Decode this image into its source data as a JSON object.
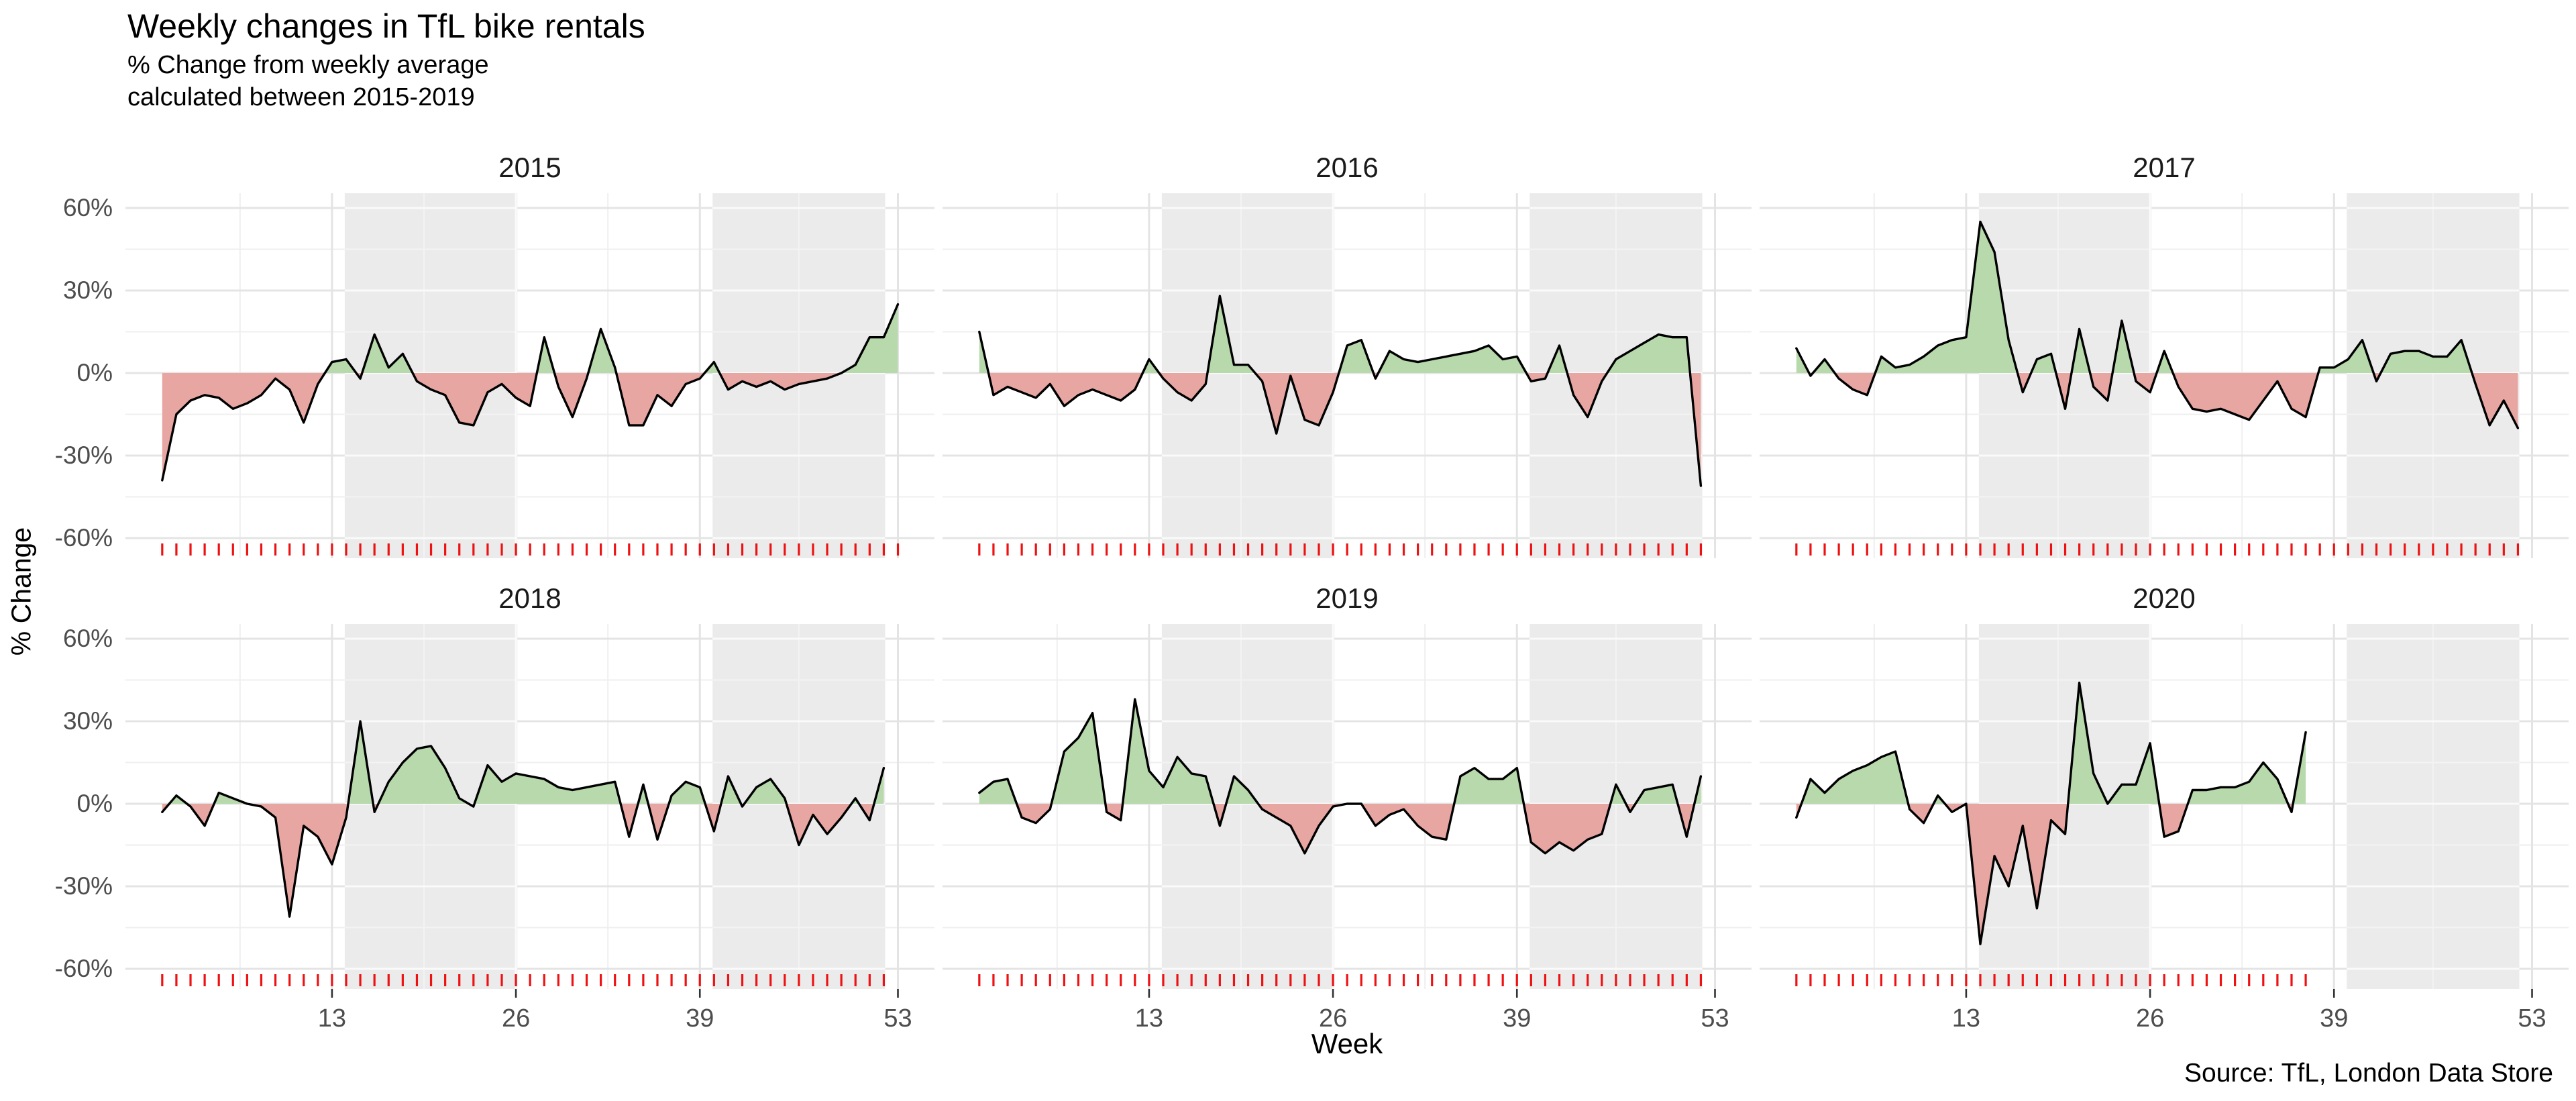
{
  "header": {
    "title": "Weekly changes in TfL bike rentals",
    "subtitle_line1": "% Change from weekly average",
    "subtitle_line2": "calculated between 2015-2019"
  },
  "caption": "Source: TfL, London Data Store",
  "chart_data": {
    "type": "area",
    "title": "Weekly changes in TfL bike rentals",
    "subtitle": "% Change from weekly average calculated between 2015-2019",
    "xlabel": "Week",
    "ylabel": "% Change",
    "ylim": [
      -68,
      66
    ],
    "xlim": [
      1,
      53
    ],
    "grid": true,
    "x_ticks": [
      13,
      26,
      39,
      53
    ],
    "y_ticks": [
      {
        "label": "60%",
        "value": 60
      },
      {
        "label": "30%",
        "value": 30
      },
      {
        "label": "0%",
        "value": 0
      },
      {
        "label": "-30%",
        "value": -30
      },
      {
        "label": "-60%",
        "value": -60
      }
    ],
    "y_minor_ticks": [
      45,
      15,
      -15,
      -45
    ],
    "x_minor_ticks": [
      6.5,
      19.5,
      32.5,
      46
    ],
    "shaded_week_bands": [
      [
        14,
        26
      ],
      [
        40,
        52
      ]
    ],
    "colors": {
      "positive_fill": "#b7d9ac",
      "negative_fill": "#e7a6a2",
      "line": "#000000",
      "rug": "#ee1111",
      "band": "#ebebeb",
      "grid_major": "#e4e4e4",
      "grid_minor": "#efefef",
      "grid_major_on_band": "#fafafa",
      "grid_minor_on_band": "#f3f3f3",
      "axis_text": "#4d4d4d",
      "axis_tick": "#333333"
    },
    "facets": [
      {
        "label": "2015",
        "start_week": 1,
        "values": [
          -39,
          -15,
          -10,
          -8,
          -9,
          -13,
          -11,
          -8,
          -2,
          -6,
          -18,
          -4,
          4,
          5,
          -2,
          14,
          2,
          7,
          -3,
          -6,
          -8,
          -18,
          -19,
          -7,
          -4,
          -9,
          -12,
          13,
          -5,
          -16,
          -2,
          16,
          2,
          -19,
          -19,
          -8,
          -12,
          -4,
          -2,
          4,
          -6,
          -3,
          -5,
          -3,
          -6,
          -4,
          -3,
          -2,
          0,
          3,
          13,
          13,
          25
        ]
      },
      {
        "label": "2016",
        "start_week": 1,
        "values": [
          15,
          -8,
          -5,
          -7,
          -9,
          -4,
          -12,
          -8,
          -6,
          -8,
          -10,
          -6,
          5,
          -2,
          -7,
          -10,
          -4,
          28,
          3,
          3,
          -3,
          -22,
          -1,
          -17,
          -19,
          -7,
          10,
          12,
          -2,
          8,
          5,
          4,
          5,
          6,
          7,
          8,
          10,
          5,
          6,
          -3,
          -2,
          10,
          -8,
          -16,
          -3,
          5,
          8,
          11,
          14,
          13,
          13,
          -41
        ]
      },
      {
        "label": "2017",
        "start_week": 1,
        "values": [
          9,
          -1,
          5,
          -2,
          -6,
          -8,
          6,
          2,
          3,
          6,
          10,
          12,
          13,
          55,
          44,
          12,
          -7,
          5,
          7,
          -13,
          16,
          -5,
          -10,
          19,
          -3,
          -7,
          8,
          -5,
          -13,
          -14,
          -13,
          -15,
          -17,
          -10,
          -3,
          -13,
          -16,
          2,
          2,
          5,
          12,
          -3,
          7,
          8,
          8,
          6,
          6,
          12,
          -4,
          -19,
          -10,
          -20
        ]
      },
      {
        "label": "2018",
        "start_week": 1,
        "values": [
          -3,
          3,
          -1,
          -8,
          4,
          2,
          0,
          -1,
          -5,
          -41,
          -8,
          -12,
          -22,
          -5,
          30,
          -3,
          8,
          15,
          20,
          21,
          13,
          2,
          -1,
          14,
          8,
          11,
          10,
          9,
          6,
          5,
          6,
          7,
          8,
          -12,
          7,
          -13,
          3,
          8,
          6,
          -10,
          10,
          -1,
          6,
          9,
          2,
          -15,
          -4,
          -11,
          -5,
          2,
          -6,
          13
        ]
      },
      {
        "label": "2019",
        "start_week": 1,
        "values": [
          4,
          8,
          9,
          -5,
          -7,
          -2,
          19,
          24,
          33,
          -3,
          -6,
          38,
          12,
          6,
          17,
          11,
          10,
          -8,
          10,
          5,
          -2,
          -5,
          -8,
          -18,
          -8,
          -1,
          0,
          0,
          -8,
          -4,
          -2,
          -8,
          -12,
          -13,
          10,
          13,
          9,
          9,
          13,
          -14,
          -18,
          -14,
          -17,
          -13,
          -11,
          7,
          -3,
          5,
          6,
          7,
          -12,
          10
        ]
      },
      {
        "label": "2020",
        "start_week": 1,
        "values": [
          -5,
          9,
          4,
          9,
          12,
          14,
          17,
          19,
          -2,
          -7,
          3,
          -3,
          0,
          -51,
          -19,
          -30,
          -8,
          -38,
          -6,
          -11,
          44,
          11,
          0,
          7,
          7,
          22,
          -12,
          -10,
          5,
          5,
          6,
          6,
          8,
          15,
          9,
          -3,
          26
        ]
      }
    ]
  }
}
